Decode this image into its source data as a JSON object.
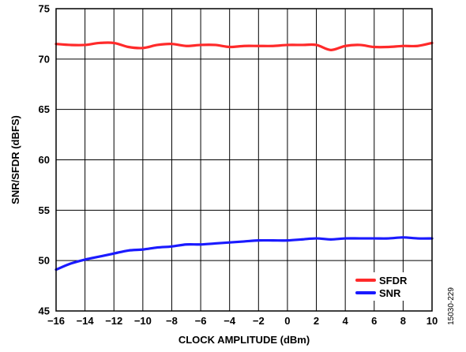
{
  "chart_data": {
    "type": "line",
    "title": "",
    "xlabel": "CLOCK AMPLITUDE (dBm)",
    "ylabel": "SNR/SFDR (dBFS)",
    "xlim": [
      -16,
      10
    ],
    "ylim": [
      45,
      75
    ],
    "xticks": [
      -16,
      -14,
      -12,
      -10,
      -8,
      -6,
      -4,
      -2,
      0,
      2,
      4,
      6,
      8,
      10
    ],
    "xtick_labels": [
      "−16",
      "−14",
      "−12",
      "−10",
      "−8",
      "−6",
      "−4",
      "−2",
      "0",
      "2",
      "4",
      "6",
      "8",
      "10"
    ],
    "yticks": [
      45,
      50,
      55,
      60,
      65,
      70,
      75
    ],
    "ytick_labels": [
      "45",
      "50",
      "55",
      "60",
      "65",
      "70",
      "75"
    ],
    "grid": true,
    "legend_position": "bottom-right",
    "series": [
      {
        "name": "SFDR",
        "color": "#ff2a2a",
        "x": [
          -16,
          -15,
          -14,
          -13,
          -12,
          -11,
          -10,
          -9,
          -8,
          -7,
          -6,
          -5,
          -4,
          -3,
          -2,
          -1,
          0,
          1,
          2,
          3,
          4,
          5,
          6,
          7,
          8,
          9,
          10
        ],
        "y": [
          71.5,
          71.4,
          71.4,
          71.6,
          71.6,
          71.2,
          71.1,
          71.4,
          71.5,
          71.3,
          71.4,
          71.4,
          71.2,
          71.3,
          71.3,
          71.3,
          71.4,
          71.4,
          71.4,
          70.9,
          71.3,
          71.4,
          71.2,
          71.2,
          71.3,
          71.3,
          71.6
        ]
      },
      {
        "name": "SNR",
        "color": "#1a1aff",
        "x": [
          -16,
          -15,
          -14,
          -13,
          -12,
          -11,
          -10,
          -9,
          -8,
          -7,
          -6,
          -5,
          -4,
          -3,
          -2,
          -1,
          0,
          1,
          2,
          3,
          4,
          5,
          6,
          7,
          8,
          9,
          10
        ],
        "y": [
          49.1,
          49.7,
          50.1,
          50.4,
          50.7,
          51.0,
          51.1,
          51.3,
          51.4,
          51.6,
          51.6,
          51.7,
          51.8,
          51.9,
          52.0,
          52.0,
          52.0,
          52.1,
          52.2,
          52.1,
          52.2,
          52.2,
          52.2,
          52.2,
          52.3,
          52.2,
          52.2
        ]
      }
    ]
  },
  "figure_code": "15030-229"
}
